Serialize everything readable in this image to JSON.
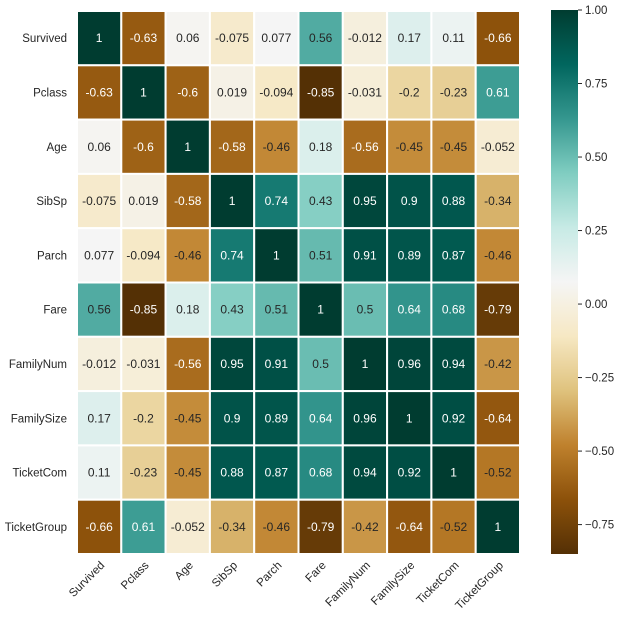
{
  "chart_data": {
    "type": "heatmap",
    "title": "",
    "xlabel": "",
    "ylabel": "",
    "colormap": "BrBG",
    "variables": [
      "Survived",
      "Pclass",
      "Age",
      "SibSp",
      "Parch",
      "Fare",
      "FamilyNum",
      "FamilySize",
      "TicketCom",
      "TicketGroup"
    ],
    "x_tick_labels": [
      "Survived",
      "Pclass",
      "Age",
      "SibSp",
      "Parch",
      "Fare",
      "FamilyNum",
      "FamilySize",
      "TicketCom",
      "TicketGroup"
    ],
    "y_tick_labels": [
      "Survived",
      "Pclass",
      "Age",
      "SibSp",
      "Parch",
      "Fare",
      "FamilyNum",
      "FamilySize",
      "TicketCom",
      "TicketGroup"
    ],
    "matrix": [
      [
        1,
        -0.63,
        0.06,
        -0.075,
        0.077,
        0.56,
        -0.012,
        0.17,
        0.11,
        -0.66
      ],
      [
        -0.63,
        1,
        -0.6,
        0.019,
        -0.094,
        -0.85,
        -0.031,
        -0.2,
        -0.23,
        0.61
      ],
      [
        0.06,
        -0.6,
        1,
        -0.58,
        -0.46,
        0.18,
        -0.56,
        -0.45,
        -0.45,
        -0.052
      ],
      [
        -0.075,
        0.019,
        -0.58,
        1,
        0.74,
        0.43,
        0.95,
        0.9,
        0.88,
        -0.34
      ],
      [
        0.077,
        -0.094,
        -0.46,
        0.74,
        1,
        0.51,
        0.91,
        0.89,
        0.87,
        -0.46
      ],
      [
        0.56,
        -0.85,
        0.18,
        0.43,
        0.51,
        1,
        0.5,
        0.64,
        0.68,
        -0.79
      ],
      [
        -0.012,
        -0.031,
        -0.56,
        0.95,
        0.91,
        0.5,
        1,
        0.96,
        0.94,
        -0.42
      ],
      [
        0.17,
        -0.2,
        -0.45,
        0.9,
        0.89,
        0.64,
        0.96,
        1,
        0.92,
        -0.64
      ],
      [
        0.11,
        -0.23,
        -0.45,
        0.88,
        0.87,
        0.68,
        0.94,
        0.92,
        1,
        -0.52
      ],
      [
        -0.66,
        0.61,
        -0.052,
        -0.34,
        -0.46,
        -0.79,
        -0.42,
        -0.64,
        -0.52,
        1
      ]
    ],
    "annotations": [
      [
        "1",
        "-0.63",
        "0.06",
        "-0.075",
        "0.077",
        "0.56",
        "-0.012",
        "0.17",
        "0.11",
        "-0.66"
      ],
      [
        "-0.63",
        "1",
        "-0.6",
        "0.019",
        "-0.094",
        "-0.85",
        "-0.031",
        "-0.2",
        "-0.23",
        "0.61"
      ],
      [
        "0.06",
        "-0.6",
        "1",
        "-0.58",
        "-0.46",
        "0.18",
        "-0.56",
        "-0.45",
        "-0.45",
        "-0.052"
      ],
      [
        "-0.075",
        "0.019",
        "-0.58",
        "1",
        "0.74",
        "0.43",
        "0.95",
        "0.9",
        "0.88",
        "-0.34"
      ],
      [
        "0.077",
        "-0.094",
        "-0.46",
        "0.74",
        "1",
        "0.51",
        "0.91",
        "0.89",
        "0.87",
        "-0.46"
      ],
      [
        "0.56",
        "-0.85",
        "0.18",
        "0.43",
        "0.51",
        "1",
        "0.5",
        "0.64",
        "0.68",
        "-0.79"
      ],
      [
        "-0.012",
        "-0.031",
        "-0.56",
        "0.95",
        "0.91",
        "0.5",
        "1",
        "0.96",
        "0.94",
        "-0.42"
      ],
      [
        "0.17",
        "-0.2",
        "-0.45",
        "0.9",
        "0.89",
        "0.64",
        "0.96",
        "1",
        "0.92",
        "-0.64"
      ],
      [
        "0.11",
        "-0.23",
        "-0.45",
        "0.88",
        "0.87",
        "0.68",
        "0.94",
        "0.92",
        "1",
        "-0.52"
      ],
      [
        "-0.66",
        "0.61",
        "-0.052",
        "-0.34",
        "-0.46",
        "-0.79",
        "-0.42",
        "-0.64",
        "-0.52",
        "1"
      ]
    ],
    "colorbar": {
      "range": [
        -0.85,
        1.0
      ],
      "ticks": [
        1.0,
        0.75,
        0.5,
        0.25,
        0.0,
        -0.25,
        -0.5,
        -0.75
      ],
      "tick_labels": [
        "1.00",
        "0.75",
        "0.50",
        "0.25",
        "0.00",
        "−0.25",
        "−0.50",
        "−0.75"
      ],
      "placement": "right"
    },
    "x_tick_rotation_deg": 45,
    "cell_gridlines": "white",
    "colors": {
      "cmap_stops": [
        "#543005",
        "#8c510a",
        "#bf812d",
        "#dfc27d",
        "#f6e8c3",
        "#f5f5f5",
        "#c7eae5",
        "#80cdc1",
        "#35978f",
        "#01665e",
        "#003c30"
      ],
      "text_dark": "#262626",
      "text_light": "#ffffff"
    }
  }
}
